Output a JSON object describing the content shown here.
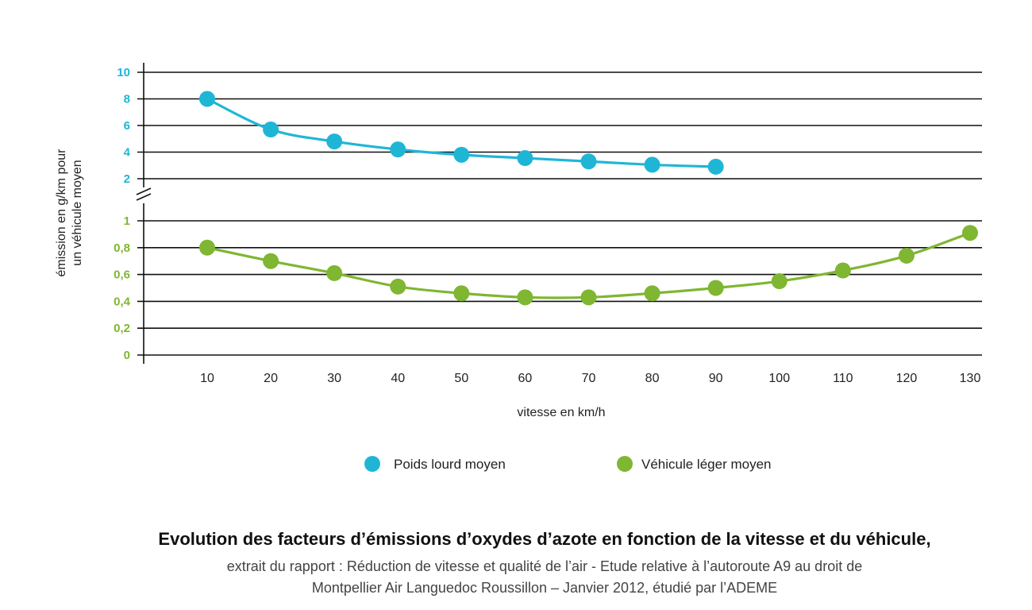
{
  "chart_data": {
    "type": "line",
    "title": "Evolution des facteurs d’émissions d’oxydes d’azote en fonction de la vitesse et du véhicule,",
    "subtitle_lines": [
      "extrait du rapport : Réduction de vitesse et qualité de l’air - Etude relative à l’autoroute A9 au droit de",
      "Montpellier Air Languedoc Roussillon – Janvier 2012, étudié par l’ADEME"
    ],
    "xlabel": "vitesse en km/h",
    "ylabel_lines": [
      "émission en g/km pour",
      "un véhicule moyen"
    ],
    "x_ticks": [
      "10",
      "20",
      "30",
      "40",
      "50",
      "60",
      "70",
      "80",
      "90",
      "100",
      "110",
      "120",
      "130"
    ],
    "x_range": [
      0,
      130
    ],
    "upper_axis": {
      "tick_labels": [
        "10",
        "8",
        "6",
        "4",
        "2"
      ],
      "range": [
        2,
        10
      ],
      "color": "#1fb6d6"
    },
    "lower_axis": {
      "tick_labels": [
        "1",
        "0,8",
        "0,6",
        "0,4",
        "0,2",
        "0"
      ],
      "range": [
        0,
        1
      ],
      "color": "#7fb632"
    },
    "axis_break": true,
    "grid": true,
    "legend_position": "bottom-center",
    "series": [
      {
        "name": "Poids lourd moyen",
        "color": "#1fb6d6",
        "axis": "upper",
        "x": [
          10,
          20,
          30,
          40,
          50,
          60,
          70,
          80,
          90
        ],
        "y": [
          8.0,
          5.7,
          4.8,
          4.2,
          3.8,
          3.55,
          3.3,
          3.05,
          2.9
        ]
      },
      {
        "name": "Véhicule léger moyen",
        "color": "#7fb632",
        "axis": "lower",
        "x": [
          10,
          20,
          30,
          40,
          50,
          60,
          70,
          80,
          90,
          100,
          110,
          120,
          130
        ],
        "y": [
          0.8,
          0.7,
          0.61,
          0.51,
          0.46,
          0.43,
          0.43,
          0.46,
          0.5,
          0.55,
          0.63,
          0.74,
          0.91
        ]
      }
    ]
  }
}
